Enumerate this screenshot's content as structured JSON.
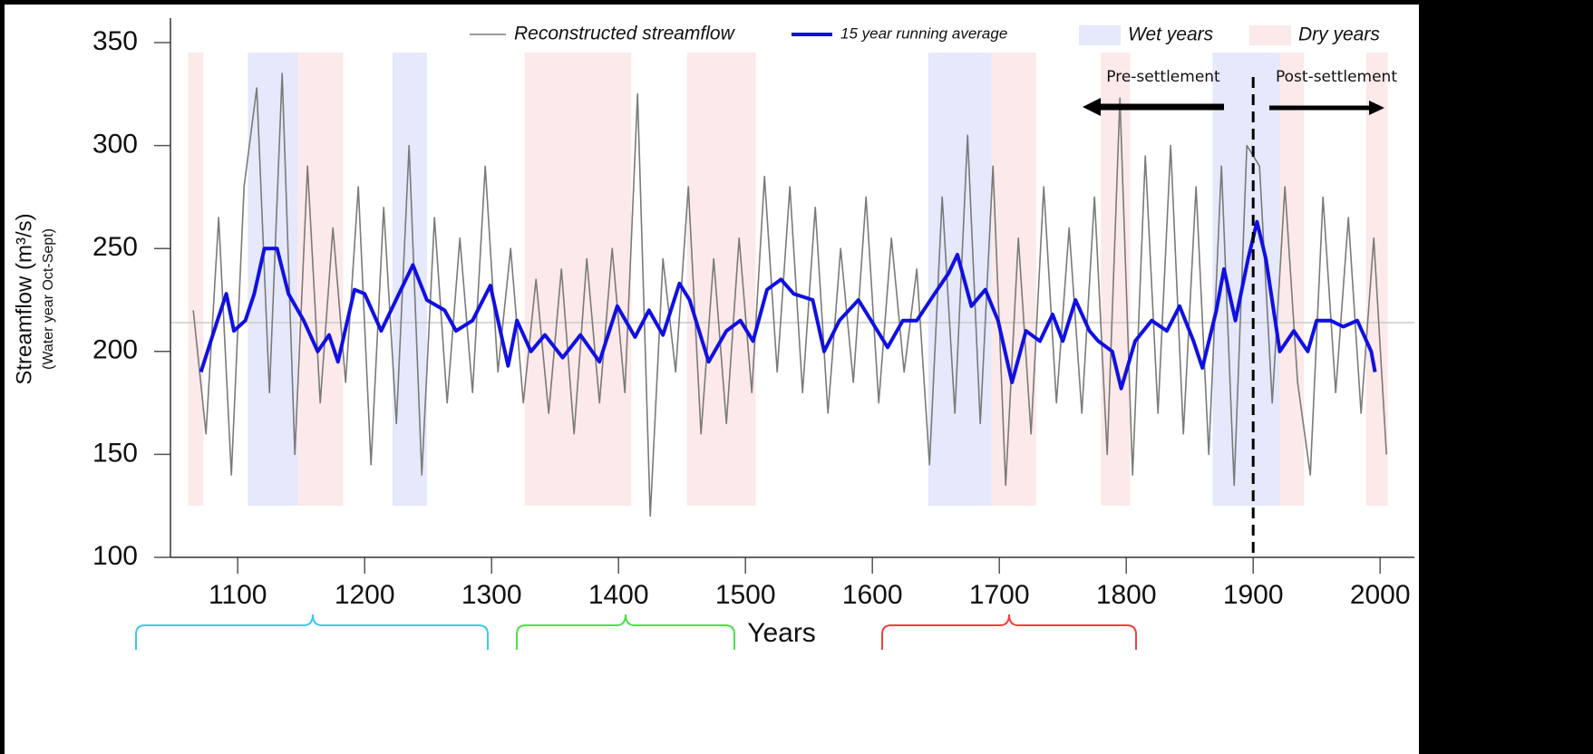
{
  "chart_data": {
    "type": "line",
    "y_label": "Streamflow (m³/s)",
    "y_sublabel": "(Water year Oct-Sept)",
    "x_label": "Years",
    "xlim": [
      1047,
      2027
    ],
    "xticks": [
      1100,
      1200,
      1300,
      1400,
      1500,
      1600,
      1700,
      1800,
      1900,
      2000
    ],
    "ylim": [
      100,
      350
    ],
    "yticks": [
      100,
      150,
      200,
      250,
      300,
      350
    ],
    "reference_line": 214,
    "series": [
      {
        "name": "Reconstructed streamflow",
        "color": "#7a7a7a",
        "x": [
          1065,
          1075,
          1085,
          1095,
          1105,
          1115,
          1125,
          1135,
          1145,
          1155,
          1165,
          1175,
          1185,
          1195,
          1205,
          1215,
          1225,
          1235,
          1245,
          1255,
          1265,
          1275,
          1285,
          1295,
          1305,
          1315,
          1325,
          1335,
          1345,
          1355,
          1365,
          1375,
          1385,
          1395,
          1405,
          1415,
          1425,
          1435,
          1445,
          1455,
          1465,
          1475,
          1485,
          1495,
          1505,
          1515,
          1525,
          1535,
          1545,
          1555,
          1565,
          1575,
          1585,
          1595,
          1605,
          1615,
          1625,
          1635,
          1645,
          1655,
          1665,
          1675,
          1685,
          1695,
          1705,
          1715,
          1725,
          1735,
          1745,
          1755,
          1765,
          1775,
          1785,
          1795,
          1805,
          1815,
          1825,
          1835,
          1845,
          1855,
          1865,
          1875,
          1885,
          1895,
          1905,
          1915,
          1925,
          1935,
          1945,
          1955,
          1965,
          1975,
          1985,
          1995,
          2005
        ],
        "values": [
          220,
          160,
          265,
          140,
          280,
          328,
          180,
          335,
          150,
          290,
          175,
          260,
          185,
          280,
          145,
          270,
          165,
          300,
          140,
          265,
          175,
          255,
          180,
          290,
          190,
          250,
          175,
          235,
          170,
          240,
          160,
          245,
          175,
          250,
          180,
          325,
          120,
          245,
          190,
          280,
          160,
          245,
          165,
          255,
          180,
          285,
          190,
          280,
          180,
          270,
          170,
          250,
          185,
          275,
          175,
          255,
          190,
          240,
          145,
          275,
          170,
          305,
          165,
          290,
          135,
          255,
          160,
          280,
          175,
          260,
          170,
          275,
          150,
          323,
          140,
          295,
          170,
          300,
          160,
          280,
          150,
          290,
          135,
          300,
          290,
          175,
          280,
          185,
          140,
          275,
          180,
          265,
          170,
          255,
          150
        ]
      },
      {
        "name": "15 year running average",
        "color": "#1010e0",
        "x": [
          1071,
          1084,
          1091,
          1097,
          1106,
          1113,
          1121,
          1131,
          1140,
          1152,
          1163,
          1172,
          1179,
          1192,
          1200,
          1213,
          1227,
          1238,
          1249,
          1263,
          1272,
          1285,
          1299,
          1313,
          1320,
          1331,
          1342,
          1356,
          1370,
          1385,
          1399,
          1413,
          1424,
          1435,
          1448,
          1456,
          1471,
          1485,
          1496,
          1506,
          1517,
          1528,
          1538,
          1553,
          1562,
          1574,
          1589,
          1599,
          1612,
          1624,
          1635,
          1649,
          1660,
          1667,
          1678,
          1689,
          1699,
          1710,
          1721,
          1732,
          1742,
          1750,
          1760,
          1771,
          1778,
          1789,
          1796,
          1807,
          1820,
          1832,
          1842,
          1853,
          1860,
          1871,
          1877,
          1886,
          1896,
          1903,
          1910,
          1921,
          1932,
          1943,
          1950,
          1961,
          1971,
          1982,
          1993,
          1996
        ],
        "values": [
          190,
          215,
          228,
          210,
          215,
          228,
          250,
          250,
          228,
          215,
          200,
          208,
          195,
          230,
          228,
          210,
          228,
          242,
          225,
          220,
          210,
          215,
          232,
          193,
          215,
          200,
          208,
          197,
          208,
          195,
          222,
          207,
          220,
          208,
          233,
          225,
          195,
          210,
          215,
          205,
          230,
          235,
          228,
          225,
          200,
          215,
          225,
          215,
          202,
          215,
          215,
          228,
          238,
          247,
          222,
          230,
          215,
          185,
          210,
          205,
          218,
          205,
          225,
          210,
          205,
          200,
          182,
          205,
          215,
          210,
          222,
          205,
          192,
          220,
          240,
          215,
          245,
          263,
          245,
          200,
          210,
          200,
          215,
          215,
          212,
          215,
          200,
          190
        ]
      }
    ],
    "periods": [
      {
        "name": "Wet years",
        "color": "#e6e8fb",
        "spans": [
          [
            1108,
            1147
          ],
          [
            1222,
            1249
          ],
          [
            1644,
            1694
          ],
          [
            1868,
            1921
          ]
        ]
      },
      {
        "name": "Dry years",
        "color": "#fce9e9",
        "spans": [
          [
            1061,
            1073
          ],
          [
            1147,
            1183
          ],
          [
            1326,
            1410
          ],
          [
            1454,
            1508
          ],
          [
            1694,
            1729
          ],
          [
            1780,
            1803
          ],
          [
            1921,
            1940
          ],
          [
            1989,
            2006
          ]
        ]
      }
    ],
    "divider": 1900,
    "annotations": [
      "Pre-settlement",
      "Post-settlement"
    ]
  }
}
